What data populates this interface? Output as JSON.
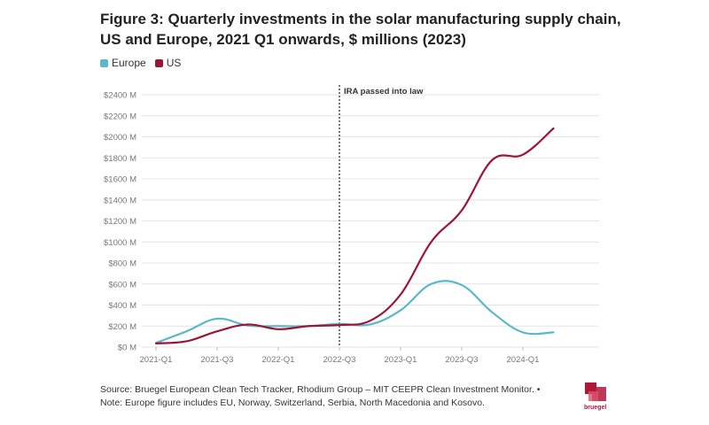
{
  "title": "Figure 3: Quarterly investments in the solar manufacturing supply chain, US and Europe, 2021 Q1 onwards, $ millions (2023)",
  "legend": [
    {
      "label": "Europe",
      "color": "#5ab9c8"
    },
    {
      "label": "US",
      "color": "#9b1537"
    }
  ],
  "footnote": "Source: Bruegel European Clean Tech Tracker, Rhodium Group – MIT CEEPR Clean Investment Monitor. • Note: Europe figure includes EU, Norway, Switzerland, Serbia, North Macedonia and Kosovo.",
  "logo_text": "bruegel",
  "chart_data": {
    "type": "line",
    "x": [
      "2021-Q1",
      "2021-Q2",
      "2021-Q3",
      "2021-Q4",
      "2022-Q1",
      "2022-Q2",
      "2022-Q3",
      "2022-Q4",
      "2023-Q1",
      "2023-Q2",
      "2023-Q3",
      "2023-Q4",
      "2024-Q1",
      "2024-Q2"
    ],
    "x_tick_labels": [
      "2021-Q1",
      "2021-Q3",
      "2022-Q1",
      "2022-Q3",
      "2023-Q1",
      "2023-Q3",
      "2024-Q1"
    ],
    "y_tick_labels": [
      "$0 M",
      "$200 M",
      "$400 M",
      "$600 M",
      "$800 M",
      "$1000 M",
      "$1200 M",
      "$1400 M",
      "$1600 M",
      "$1800 M",
      "$2000 M",
      "$2200 M",
      "$2400 M"
    ],
    "ylim": [
      0,
      2400
    ],
    "grid": true,
    "series": [
      {
        "name": "Europe",
        "color": "#5ab9c8",
        "values": [
          40,
          150,
          270,
          205,
          200,
          200,
          220,
          215,
          350,
          600,
          590,
          330,
          140,
          140
        ]
      },
      {
        "name": "US",
        "color": "#9b1537",
        "values": [
          35,
          55,
          150,
          215,
          170,
          200,
          210,
          250,
          500,
          1000,
          1300,
          1780,
          1830,
          2080
        ]
      }
    ],
    "annotations": [
      {
        "x": "2022-Q3",
        "label": "IRA passed into law",
        "style": "dotted-vertical-line"
      }
    ]
  }
}
